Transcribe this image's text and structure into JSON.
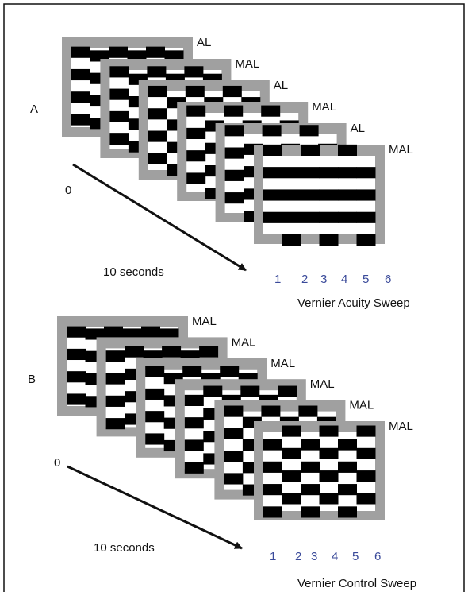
{
  "panels": [
    {
      "label": "A",
      "frame_labels": [
        "AL",
        "MAL",
        "AL",
        "MAL",
        "AL",
        "MAL"
      ],
      "start": "0",
      "duration": "10 seconds",
      "steps": [
        "1",
        "2",
        "3",
        "4",
        "5",
        "6"
      ],
      "caption": "Vernier Acuity Sweep"
    },
    {
      "label": "B",
      "frame_labels": [
        "MAL",
        "MAL",
        "MAL",
        "MAL",
        "MAL",
        "MAL"
      ],
      "start": "0",
      "duration": "10 seconds",
      "steps": [
        "1",
        "2",
        "3",
        "4",
        "5",
        "6"
      ],
      "caption": "Vernier Control Sweep"
    }
  ]
}
